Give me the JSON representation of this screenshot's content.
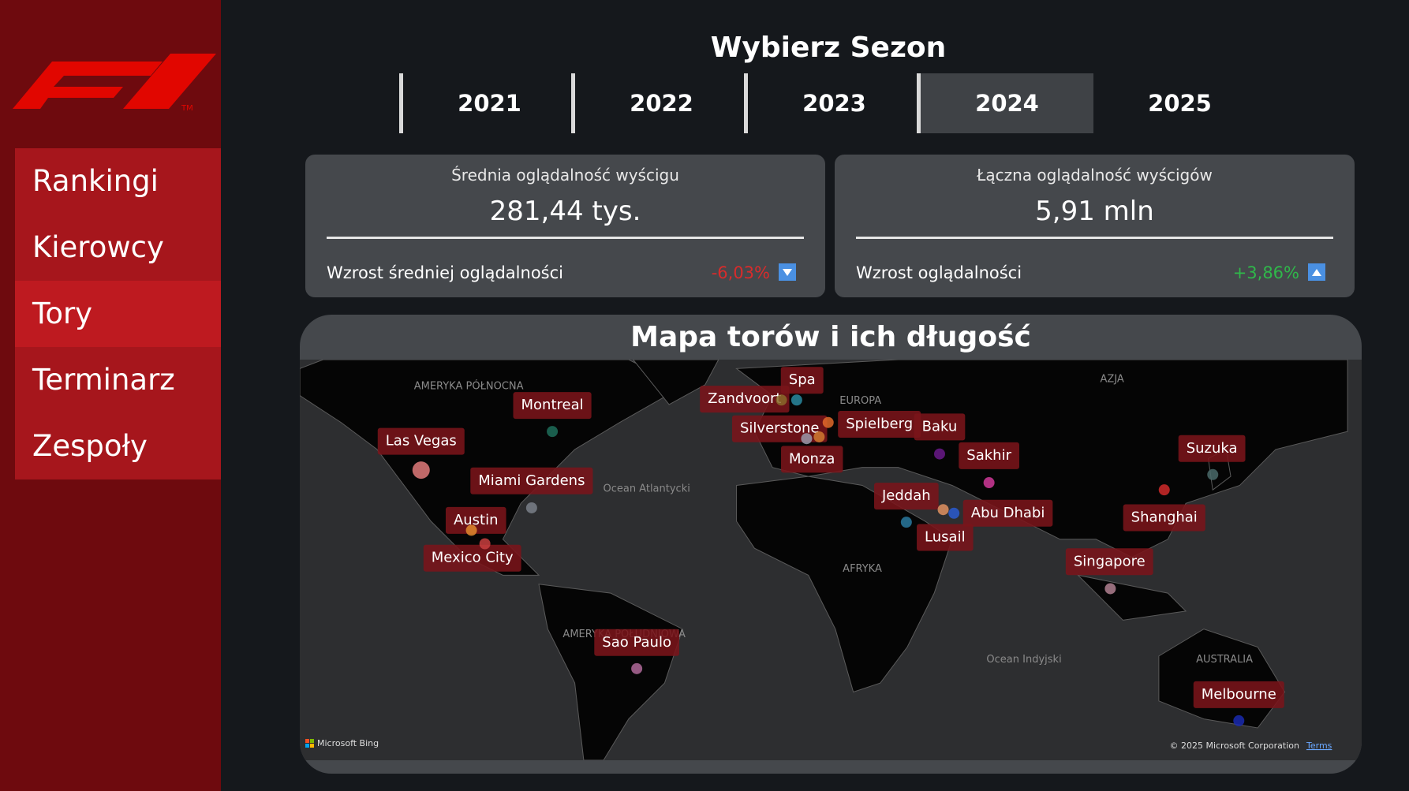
{
  "logo": {
    "tm": "TM"
  },
  "nav": [
    "Rankingi",
    "Kierowcy",
    "Tory",
    "Terminarz",
    "Zespoły"
  ],
  "season": {
    "title": "Wybierz Sezon",
    "options": [
      "2021",
      "2022",
      "2023",
      "2024",
      "2025"
    ]
  },
  "cards": [
    {
      "title": "Średnia oglądalność wyścigu",
      "value": "281,44 tys.",
      "growth_label": "Wzrost średniej oglądalności",
      "growth": "-6,03%"
    },
    {
      "title": "Łączna oglądalność wyścigów",
      "value": "5,91 mln",
      "growth_label": "Wzrost oglądalności",
      "growth": "+3,86%"
    }
  ],
  "map": {
    "title": "Mapa torów i ich długość",
    "regions": [
      "AMERYKA PÓŁNOCNA",
      "EUROPA",
      "AZJA",
      "AFRYKA",
      "Ocean Atlantycki",
      "Ocean Indyjski",
      "AUSTRALIA",
      "AMERYKA POŁUDNIOWA"
    ],
    "circuits": [
      "Montreal",
      "Las Vegas",
      "Miami Gardens",
      "Austin",
      "Mexico City",
      "Sao Paulo",
      "Zandvoort",
      "Spa",
      "Silverstone",
      "Spielberg",
      "Monza",
      "Baku",
      "Sakhir",
      "Jeddah",
      "Abu Dhabi",
      "Lusail",
      "Suzuka",
      "Shanghai",
      "Singapore",
      "Melbourne"
    ],
    "attribution": {
      "brand": "Microsoft Bing",
      "copyright": "© 2025 Microsoft Corporation",
      "terms": "Terms"
    }
  }
}
